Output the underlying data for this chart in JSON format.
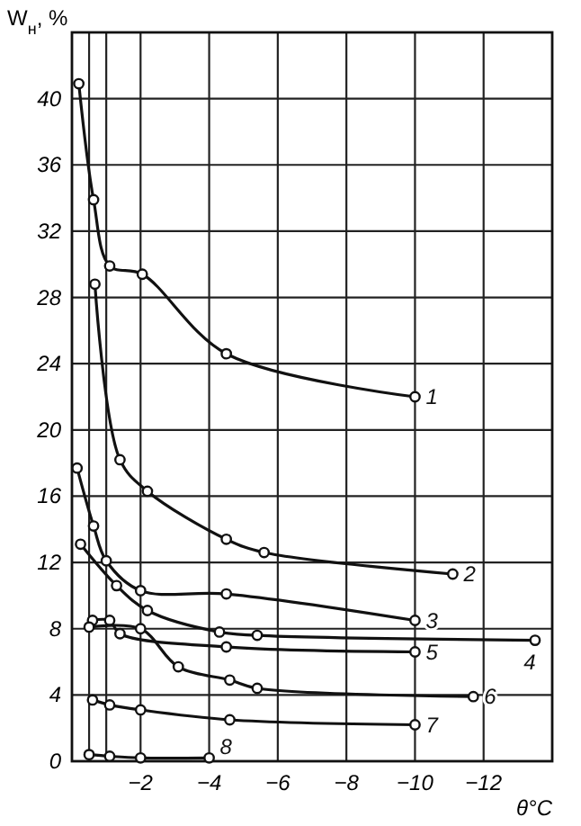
{
  "chart_data": {
    "type": "line",
    "xlabel": "θ°C",
    "ylabel": "W$_{н}$, %",
    "xlim": [
      0,
      -14
    ],
    "ylim": [
      0,
      44
    ],
    "xticks": [
      {
        "value": -0.5,
        "label": null
      },
      {
        "value": -1,
        "label": null
      },
      -2,
      -4,
      -6,
      -8,
      -10,
      -12
    ],
    "yticks": [
      0,
      4,
      8,
      12,
      16,
      20,
      24,
      28,
      32,
      36,
      40
    ],
    "grid": true,
    "marker": "circle",
    "series": [
      {
        "name": "1",
        "color": "#111111",
        "x": [
          -0.2,
          -0.63,
          -1.1,
          -2.05,
          -4.5,
          -10
        ],
        "values": [
          40.9,
          33.9,
          29.9,
          29.4,
          24.6,
          22.0
        ]
      },
      {
        "name": "2",
        "color": "#111111",
        "x": [
          -0.67,
          -1.4,
          -2.2,
          -4.5,
          -5.6,
          -11.1
        ],
        "values": [
          28.8,
          18.2,
          16.3,
          13.4,
          12.6,
          11.3
        ]
      },
      {
        "name": "3",
        "color": "#111111",
        "x": [
          -0.15,
          -0.63,
          -1,
          -2,
          -4.5,
          -10
        ],
        "values": [
          17.7,
          14.2,
          12.1,
          10.3,
          10.1,
          8.5
        ]
      },
      {
        "name": "4",
        "color": "#111111",
        "x": [
          -0.25,
          -1.3,
          -2.2,
          -4.3,
          -5.4,
          -13.5
        ],
        "values": [
          13.1,
          10.6,
          9.1,
          7.8,
          7.6,
          7.3
        ]
      },
      {
        "name": "5",
        "color": "#111111",
        "x": [
          -0.6,
          -1.1,
          -1.4,
          -4.5,
          -10
        ],
        "values": [
          8.5,
          8.5,
          7.7,
          6.9,
          6.6
        ]
      },
      {
        "name": "6",
        "color": "#111111",
        "x": [
          -0.5,
          -2,
          -3.1,
          -4.6,
          -5.4,
          -11.7
        ],
        "values": [
          8.1,
          8.0,
          5.7,
          4.9,
          4.4,
          3.9
        ]
      },
      {
        "name": "7",
        "color": "#111111",
        "x": [
          -0.6,
          -1.1,
          -2,
          -4.6,
          -10
        ],
        "values": [
          3.7,
          3.4,
          3.1,
          2.5,
          2.2
        ]
      },
      {
        "name": "8",
        "color": "#111111",
        "x": [
          -0.5,
          -1.1,
          -2,
          -4
        ],
        "values": [
          0.4,
          0.3,
          0.2,
          0.2
        ]
      }
    ]
  }
}
